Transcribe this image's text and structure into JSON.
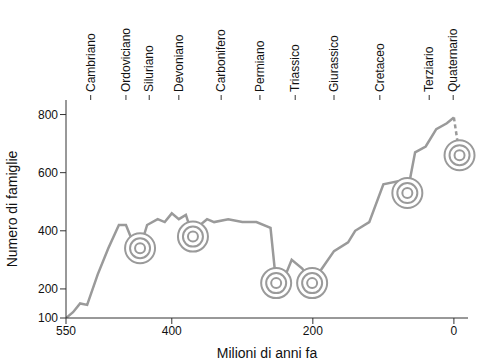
{
  "chart_data": {
    "type": "line",
    "x_label": "Milioni di anni fa",
    "y_label": "Numero di famiglie",
    "x": [
      550,
      540,
      530,
      520,
      505,
      490,
      475,
      465,
      455,
      445,
      435,
      420,
      410,
      400,
      390,
      380,
      370,
      360,
      350,
      340,
      320,
      300,
      280,
      260,
      252,
      240,
      230,
      215,
      201,
      190,
      170,
      150,
      140,
      120,
      100,
      80,
      66,
      55,
      40,
      25,
      10,
      0,
      -8
    ],
    "series": [
      {
        "color": "#9a9a9a",
        "line_style": "solid",
        "values": [
          100,
          120,
          150,
          145,
          250,
          340,
          420,
          420,
          360,
          340,
          420,
          440,
          430,
          460,
          440,
          455,
          380,
          420,
          440,
          430,
          440,
          430,
          430,
          410,
          220,
          240,
          300,
          270,
          220,
          260,
          330,
          360,
          400,
          430,
          560,
          570,
          530,
          670,
          690,
          750,
          770,
          790,
          null
        ]
      },
      {
        "color": "#9a9a9a",
        "line_style": "dashed",
        "values": [
          null,
          null,
          null,
          null,
          null,
          null,
          null,
          null,
          null,
          null,
          null,
          null,
          null,
          null,
          null,
          null,
          null,
          null,
          null,
          null,
          null,
          null,
          null,
          null,
          null,
          null,
          null,
          null,
          null,
          null,
          null,
          null,
          null,
          null,
          null,
          null,
          null,
          null,
          null,
          null,
          null,
          790,
          660
        ]
      }
    ],
    "xlim": [
      550,
      -20
    ],
    "xticks": [
      550,
      400,
      200,
      0
    ],
    "ylim": [
      100,
      850
    ],
    "yticks": [
      100,
      200,
      400,
      600,
      800
    ],
    "grid": false,
    "periods": {
      "labels": [
        "Cambriano",
        "Ordoviciano",
        "Siluriano",
        "Devoniano",
        "Carbonifero",
        "Permiano",
        "Triassico",
        "Giurassico",
        "Cretaceo",
        "Terziario",
        "Quaternario"
      ],
      "x": [
        515,
        465,
        432,
        390,
        330,
        275,
        225,
        170,
        105,
        35,
        1
      ]
    },
    "extinctions": {
      "x": [
        445,
        370,
        252,
        201,
        66,
        -8
      ],
      "y": [
        340,
        380,
        220,
        220,
        530,
        660
      ]
    }
  }
}
